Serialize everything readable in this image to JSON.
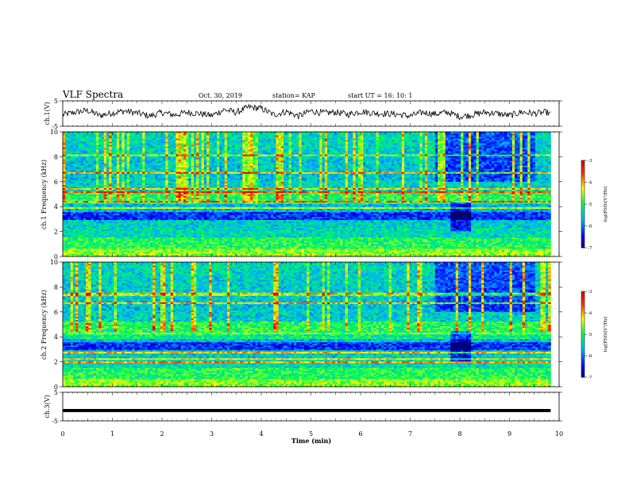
{
  "header": {
    "title": "VLF Spectra",
    "date": "Oct. 30, 2019",
    "station": "station= KAP",
    "start": "start  UT =   16: 10: 1"
  },
  "colorbar": {
    "label": "log(PSD)(V²/Hz)",
    "ticks": [
      "-3",
      "-4",
      "-5",
      "-6",
      "-7"
    ]
  },
  "chart_data": [
    {
      "type": "line",
      "title": "",
      "ylabel": "ch.1(V)",
      "xlim": [
        0,
        10
      ],
      "ylim": [
        -5,
        5
      ],
      "yticks": [
        "5",
        "-5"
      ],
      "series": [
        {
          "x": [
            0,
            0.25,
            0.5,
            0.75,
            1,
            1.25,
            1.5,
            1.75,
            2,
            2.25,
            2.5,
            2.75,
            3,
            3.25,
            3.5,
            3.75,
            4,
            4.25,
            4.5,
            4.75,
            5,
            5.25,
            5.5,
            5.75,
            6,
            6.25,
            6.5,
            6.75,
            7,
            7.25,
            7.5,
            7.75,
            8,
            8.25,
            8.5,
            8.75,
            9,
            9.25,
            9.5,
            9.75,
            9.83
          ],
          "y": [
            -0.5,
            0.5,
            1.2,
            -0.8,
            0.3,
            1.0,
            0.2,
            -1.0,
            0.4,
            -0.6,
            0.5,
            0.0,
            -0.8,
            1.5,
            0.5,
            2.5,
            2.0,
            -0.5,
            0.8,
            -1.0,
            1.0,
            0.2,
            0.5,
            -0.3,
            0.8,
            0.2,
            0.0,
            -0.3,
            -1.0,
            0.5,
            -0.2,
            0.5,
            -1.2,
            -0.5,
            0.5,
            0.0,
            -0.8,
            0.6,
            0.0,
            0.5,
            -0.3
          ]
        }
      ]
    },
    {
      "type": "heatmap",
      "title": "",
      "ylabel": "ch.1 Frequency (kHz)",
      "xlim": [
        0,
        10
      ],
      "ylim": [
        0,
        10
      ],
      "zlim": [
        -7,
        -3
      ],
      "yticks": [
        "0",
        "2",
        "4",
        "6",
        "8",
        "10"
      ]
    },
    {
      "type": "heatmap",
      "title": "",
      "ylabel": "ch.2 Frequency (kHz)",
      "xlim": [
        0,
        10
      ],
      "ylim": [
        0,
        10
      ],
      "zlim": [
        -7,
        -3
      ],
      "yticks": [
        "0",
        "2",
        "4",
        "6",
        "8",
        "10"
      ]
    },
    {
      "type": "line",
      "title": "",
      "ylabel": "ch.3(V)",
      "xlabel": "Time  (min)",
      "xlim": [
        0,
        10
      ],
      "ylim": [
        -5,
        5
      ],
      "yticks": [
        "5",
        "-5"
      ],
      "xticks": [
        "0",
        "1",
        "2",
        "3",
        "4",
        "5",
        "6",
        "7",
        "8",
        "9",
        "10"
      ],
      "series": [
        {
          "x": [
            0,
            9.83
          ],
          "y": [
            0,
            0
          ]
        }
      ]
    }
  ]
}
